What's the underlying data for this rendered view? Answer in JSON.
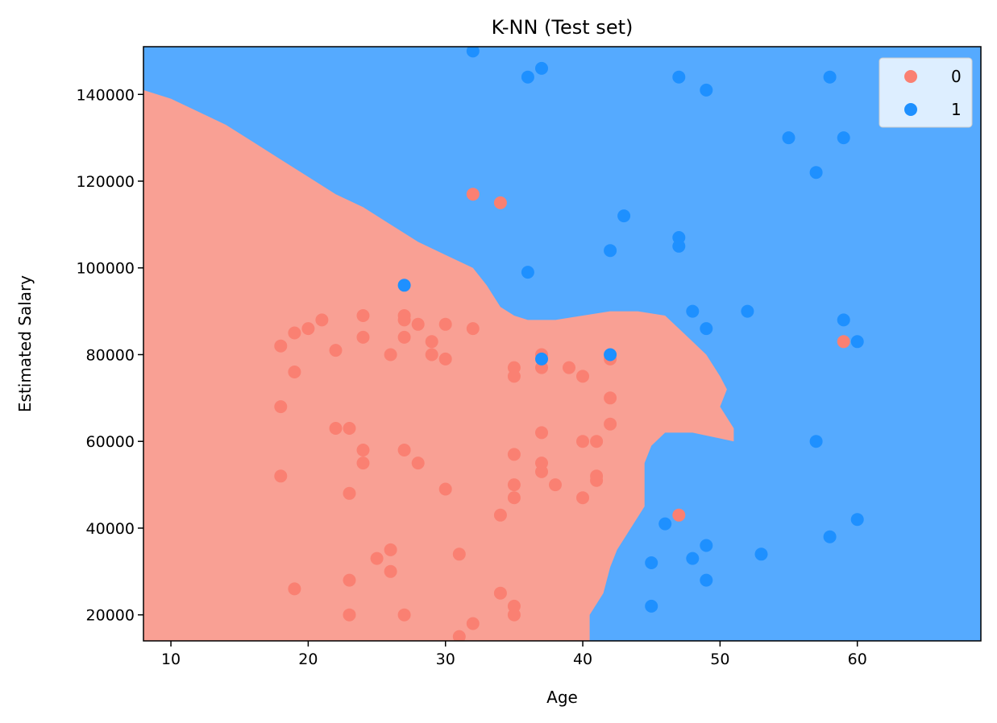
{
  "chart_data": {
    "type": "scatter",
    "title": "K-NN (Test set)",
    "xlabel": "Age",
    "ylabel": "Estimated Salary",
    "xlim": [
      8,
      69
    ],
    "ylim": [
      14000,
      151000
    ],
    "xticks": [
      10,
      20,
      30,
      40,
      50,
      60
    ],
    "yticks": [
      20000,
      40000,
      60000,
      80000,
      100000,
      120000,
      140000
    ],
    "grid": false,
    "legend_position": "top-right",
    "colors": {
      "class0_region": "#f9a094",
      "class1_region": "#55aaff",
      "class0_point": "#fa8072",
      "class1_point": "#1e90ff"
    },
    "decision_boundary": [
      [
        8,
        141000
      ],
      [
        10,
        139000
      ],
      [
        12,
        136000
      ],
      [
        14,
        133000
      ],
      [
        16,
        129000
      ],
      [
        18,
        125000
      ],
      [
        20,
        121000
      ],
      [
        22,
        117000
      ],
      [
        24,
        114000
      ],
      [
        26,
        110000
      ],
      [
        28,
        106000
      ],
      [
        30,
        103000
      ],
      [
        32,
        100000
      ],
      [
        33,
        96000
      ],
      [
        34,
        91000
      ],
      [
        35,
        89000
      ],
      [
        36,
        88000
      ],
      [
        38,
        88000
      ],
      [
        40,
        89000
      ],
      [
        42,
        90000
      ],
      [
        44,
        90000
      ],
      [
        46,
        89000
      ],
      [
        47,
        86000
      ],
      [
        48,
        83000
      ],
      [
        49,
        80000
      ],
      [
        50,
        75000
      ],
      [
        50.5,
        72000
      ],
      [
        50,
        68000
      ],
      [
        51,
        63000
      ],
      [
        51,
        60000
      ],
      [
        48,
        62000
      ],
      [
        46,
        62000
      ],
      [
        45,
        59000
      ],
      [
        44.5,
        55000
      ],
      [
        44.5,
        45000
      ],
      [
        43.5,
        40000
      ],
      [
        42.5,
        35000
      ],
      [
        42,
        31000
      ],
      [
        41.5,
        25000
      ],
      [
        40.5,
        20000
      ],
      [
        40.5,
        14000
      ]
    ],
    "series": [
      {
        "name": "0",
        "points": [
          [
            18,
            82000
          ],
          [
            19,
            85000
          ],
          [
            20,
            86000
          ],
          [
            21,
            88000
          ],
          [
            22,
            81000
          ],
          [
            24,
            89000
          ],
          [
            24,
            84000
          ],
          [
            26,
            80000
          ],
          [
            27,
            89000
          ],
          [
            27,
            88000
          ],
          [
            28,
            87000
          ],
          [
            27,
            84000
          ],
          [
            29,
            83000
          ],
          [
            29,
            80000
          ],
          [
            30,
            87000
          ],
          [
            30,
            79000
          ],
          [
            32,
            86000
          ],
          [
            32,
            117000
          ],
          [
            34,
            115000
          ],
          [
            19,
            76000
          ],
          [
            18,
            68000
          ],
          [
            22,
            63000
          ],
          [
            23,
            63000
          ],
          [
            24,
            58000
          ],
          [
            24,
            55000
          ],
          [
            27,
            58000
          ],
          [
            28,
            55000
          ],
          [
            18,
            52000
          ],
          [
            23,
            48000
          ],
          [
            30,
            49000
          ],
          [
            26,
            35000
          ],
          [
            25,
            33000
          ],
          [
            26,
            30000
          ],
          [
            31,
            34000
          ],
          [
            23,
            28000
          ],
          [
            19,
            26000
          ],
          [
            23,
            20000
          ],
          [
            27,
            20000
          ],
          [
            31,
            15000
          ],
          [
            32,
            18000
          ],
          [
            34,
            25000
          ],
          [
            35,
            22000
          ],
          [
            35,
            20000
          ],
          [
            34,
            43000
          ],
          [
            35,
            50000
          ],
          [
            35,
            47000
          ],
          [
            37,
            55000
          ],
          [
            37,
            53000
          ],
          [
            38,
            50000
          ],
          [
            35,
            57000
          ],
          [
            37,
            62000
          ],
          [
            35,
            77000
          ],
          [
            35,
            75000
          ],
          [
            37,
            80000
          ],
          [
            37,
            77000
          ],
          [
            39,
            77000
          ],
          [
            40,
            75000
          ],
          [
            40,
            60000
          ],
          [
            41,
            60000
          ],
          [
            42,
            64000
          ],
          [
            42,
            70000
          ],
          [
            41,
            52000
          ],
          [
            41,
            51000
          ],
          [
            40,
            47000
          ],
          [
            42,
            79000
          ],
          [
            47,
            43000
          ],
          [
            59,
            83000
          ]
        ]
      },
      {
        "name": "1",
        "points": [
          [
            32,
            150000
          ],
          [
            36,
            144000
          ],
          [
            37,
            146000
          ],
          [
            47,
            144000
          ],
          [
            49,
            141000
          ],
          [
            58,
            144000
          ],
          [
            55,
            130000
          ],
          [
            59,
            130000
          ],
          [
            57,
            122000
          ],
          [
            43,
            112000
          ],
          [
            47,
            107000
          ],
          [
            47,
            105000
          ],
          [
            42,
            104000
          ],
          [
            36,
            99000
          ],
          [
            27,
            96000
          ],
          [
            48,
            90000
          ],
          [
            52,
            90000
          ],
          [
            59,
            88000
          ],
          [
            49,
            86000
          ],
          [
            60,
            83000
          ],
          [
            37,
            79000
          ],
          [
            42,
            80000
          ],
          [
            57,
            60000
          ],
          [
            60,
            42000
          ],
          [
            46,
            41000
          ],
          [
            58,
            38000
          ],
          [
            49,
            36000
          ],
          [
            53,
            34000
          ],
          [
            48,
            33000
          ],
          [
            45,
            32000
          ],
          [
            49,
            28000
          ],
          [
            45,
            22000
          ]
        ]
      }
    ]
  }
}
